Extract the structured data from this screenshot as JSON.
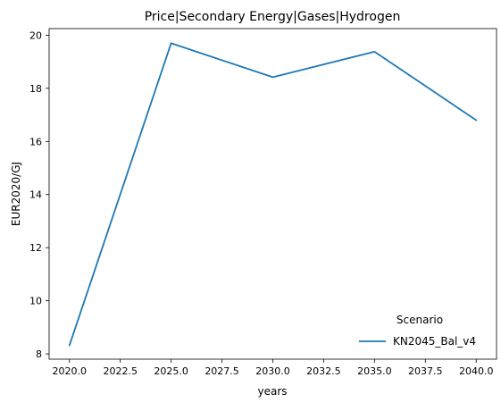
{
  "chart_data": {
    "type": "line",
    "title": "Price|Secondary Energy|Gases|Hydrogen",
    "xlabel": "years",
    "ylabel": "EUR2020/GJ",
    "xlim": [
      2019.0,
      2041.0
    ],
    "ylim": [
      7.8,
      20.25
    ],
    "xticks": [
      2020.0,
      2022.5,
      2025.0,
      2027.5,
      2030.0,
      2032.5,
      2035.0,
      2037.5,
      2040.0
    ],
    "xtick_labels": [
      "2020.0",
      "2022.5",
      "2025.0",
      "2027.5",
      "2030.0",
      "2032.5",
      "2035.0",
      "2037.5",
      "2040.0"
    ],
    "yticks": [
      8,
      10,
      12,
      14,
      16,
      18,
      20
    ],
    "ytick_labels": [
      "8",
      "10",
      "12",
      "14",
      "16",
      "18",
      "20"
    ],
    "grid": false,
    "legend": {
      "title": "Scenario",
      "placement": "lower-right"
    },
    "series": [
      {
        "name": "KN2045_Bal_v4",
        "color": "#1f77b4",
        "x": [
          2020,
          2025,
          2030,
          2035,
          2040
        ],
        "y": [
          8.32,
          19.7,
          18.42,
          19.38,
          16.8
        ]
      }
    ]
  }
}
